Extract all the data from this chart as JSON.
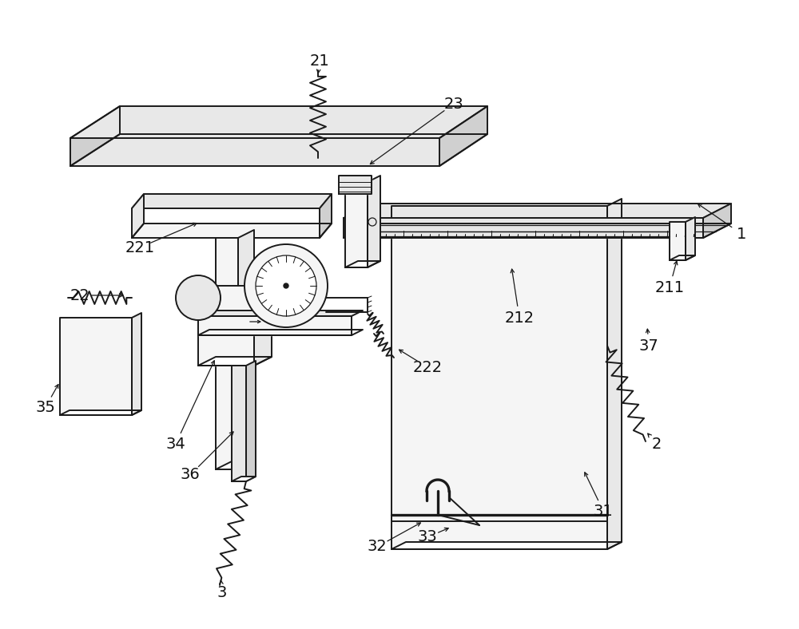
{
  "background_color": "#ffffff",
  "line_color": "#1a1a1a",
  "fill_light": "#f5f5f5",
  "fill_mid": "#e8e8e8",
  "fill_dark": "#d0d0d0",
  "fill_white": "#ffffff",
  "lw": 1.4,
  "tlw": 0.9,
  "fig_width": 10.0,
  "fig_height": 7.88
}
